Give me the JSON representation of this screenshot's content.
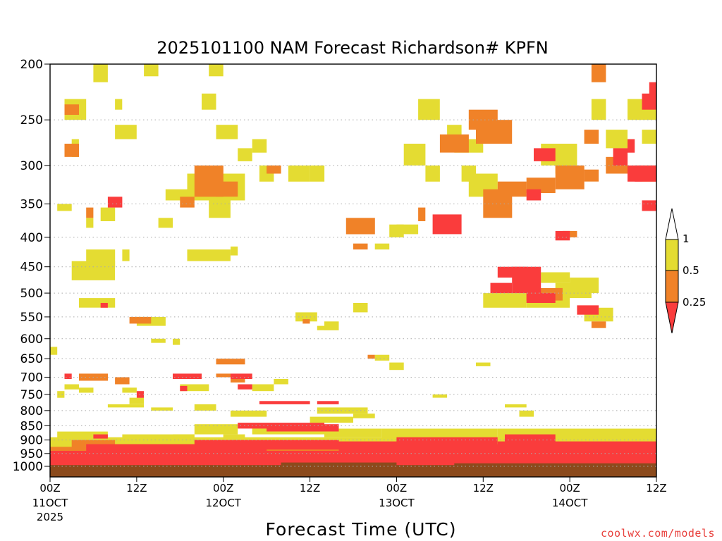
{
  "chart_data": {
    "type": "heatmap",
    "title": "2025101100 NAM Forecast Richardson# KPFN",
    "xlabel": "Forecast Time (UTC)",
    "ylabel": "",
    "credit": "coolwx.com/models",
    "x_range_hours": [
      0,
      84
    ],
    "y_range_hpa": [
      200,
      1000
    ],
    "y_scale": "log",
    "y_ticks": [
      200,
      250,
      300,
      350,
      400,
      450,
      500,
      550,
      600,
      650,
      700,
      750,
      800,
      850,
      900,
      950,
      1000
    ],
    "x_ticks": [
      {
        "hour": 0,
        "top": "00Z",
        "mid": "11OCT",
        "bot": "2025"
      },
      {
        "hour": 12,
        "top": "12Z",
        "mid": "",
        "bot": ""
      },
      {
        "hour": 24,
        "top": "00Z",
        "mid": "12OCT",
        "bot": ""
      },
      {
        "hour": 36,
        "top": "12Z",
        "mid": "",
        "bot": ""
      },
      {
        "hour": 48,
        "top": "00Z",
        "mid": "13OCT",
        "bot": ""
      },
      {
        "hour": 60,
        "top": "12Z",
        "mid": "",
        "bot": ""
      },
      {
        "hour": 72,
        "top": "00Z",
        "mid": "14OCT",
        "bot": ""
      },
      {
        "hour": 84,
        "top": "12Z",
        "mid": "",
        "bot": ""
      }
    ],
    "legend": {
      "position": "right",
      "levels": [
        "1",
        "0.5",
        "0.25"
      ],
      "colors": {
        "yellow": "#e4dc32",
        "orange": "#f08228",
        "red": "#fa3c3c",
        "ground": "#8b4a1c"
      }
    },
    "series": [
      {
        "name": "red",
        "color": "#fa3c3c",
        "cells": [
          [
            0,
            84,
            960,
            1000
          ],
          [
            0,
            84,
            940,
            965
          ],
          [
            5,
            30,
            915,
            945
          ],
          [
            20,
            40,
            900,
            935
          ],
          [
            40,
            60,
            905,
            945
          ],
          [
            45,
            82,
            915,
            950
          ],
          [
            62,
            84,
            905,
            950
          ],
          [
            6,
            8,
            880,
            895
          ],
          [
            26,
            38,
            840,
            860
          ],
          [
            30,
            40,
            845,
            870
          ],
          [
            48,
            62,
            890,
            925
          ],
          [
            63,
            70,
            880,
            915
          ],
          [
            7,
            8,
            520,
            530
          ],
          [
            2,
            3,
            690,
            705
          ],
          [
            12,
            13,
            740,
            760
          ],
          [
            17,
            21,
            690,
            705
          ],
          [
            18,
            19,
            725,
            740
          ],
          [
            25,
            28,
            690,
            705
          ],
          [
            26,
            28,
            720,
            735
          ],
          [
            29,
            36,
            770,
            780
          ],
          [
            37,
            40,
            770,
            780
          ],
          [
            53,
            57,
            365,
            395
          ],
          [
            61,
            64,
            480,
            500
          ],
          [
            62,
            66,
            450,
            470
          ],
          [
            64,
            68,
            450,
            500
          ],
          [
            66,
            70,
            500,
            520
          ],
          [
            70,
            72,
            390,
            405
          ],
          [
            73,
            76,
            525,
            545
          ],
          [
            78,
            80,
            280,
            300
          ],
          [
            80,
            84,
            300,
            320
          ],
          [
            82,
            84,
            225,
            240
          ],
          [
            83,
            86,
            215,
            230
          ],
          [
            82,
            86,
            345,
            360
          ],
          [
            88,
            89,
            340,
            350
          ],
          [
            8,
            10,
            340,
            355
          ],
          [
            80,
            81,
            270,
            285
          ],
          [
            89,
            92,
            230,
            245
          ],
          [
            67,
            70,
            280,
            295
          ],
          [
            66,
            68,
            330,
            345
          ],
          [
            86,
            88,
            220,
            235
          ],
          [
            81,
            82,
            300,
            320
          ]
        ]
      },
      {
        "name": "orange",
        "color": "#f08228",
        "cells": [
          [
            0,
            84,
            925,
            960
          ],
          [
            2,
            26,
            935,
            965
          ],
          [
            35,
            48,
            935,
            960
          ],
          [
            60,
            84,
            930,
            960
          ],
          [
            3,
            9,
            900,
            930
          ],
          [
            4,
            8,
            690,
            710
          ],
          [
            11,
            14,
            550,
            565
          ],
          [
            18,
            20,
            340,
            355
          ],
          [
            20,
            24,
            300,
            340
          ],
          [
            23,
            26,
            320,
            340
          ],
          [
            30,
            32,
            300,
            310
          ],
          [
            35,
            36,
            555,
            565
          ],
          [
            42,
            44,
            410,
            420
          ],
          [
            41,
            45,
            370,
            395
          ],
          [
            51,
            52,
            355,
            375
          ],
          [
            54,
            58,
            265,
            285
          ],
          [
            58,
            62,
            240,
            260
          ],
          [
            59,
            64,
            250,
            275
          ],
          [
            60,
            64,
            330,
            370
          ],
          [
            62,
            66,
            320,
            340
          ],
          [
            66,
            71,
            490,
            515
          ],
          [
            66,
            70,
            315,
            335
          ],
          [
            70,
            74,
            300,
            330
          ],
          [
            74,
            76,
            305,
            320
          ],
          [
            77,
            80,
            290,
            310
          ],
          [
            82,
            84,
            300,
            320
          ],
          [
            85,
            88,
            330,
            345
          ],
          [
            90,
            92,
            325,
            345
          ],
          [
            23,
            27,
            650,
            665
          ],
          [
            25,
            27,
            700,
            715
          ],
          [
            23,
            25,
            690,
            700
          ],
          [
            44,
            45,
            640,
            650
          ],
          [
            2,
            4,
            235,
            245
          ],
          [
            2,
            4,
            275,
            290
          ],
          [
            5,
            6,
            355,
            370
          ],
          [
            71,
            73,
            390,
            400
          ],
          [
            75,
            77,
            200,
            215
          ],
          [
            74,
            76,
            260,
            275
          ],
          [
            75,
            77,
            560,
            575
          ],
          [
            9,
            11,
            700,
            720
          ],
          [
            84,
            86,
            200,
            215
          ]
        ]
      },
      {
        "name": "yellow",
        "color": "#e4dc32",
        "cells": [
          [
            0,
            84,
            890,
            930
          ],
          [
            1,
            8,
            870,
            900
          ],
          [
            10,
            20,
            880,
            910
          ],
          [
            20,
            26,
            845,
            880
          ],
          [
            28,
            38,
            850,
            880
          ],
          [
            36,
            42,
            820,
            840
          ],
          [
            38,
            46,
            860,
            890
          ],
          [
            46,
            62,
            860,
            900
          ],
          [
            62,
            84,
            860,
            900
          ],
          [
            72,
            80,
            870,
            890
          ],
          [
            2,
            5,
            230,
            250
          ],
          [
            3,
            4,
            270,
            290
          ],
          [
            6,
            8,
            200,
            215
          ],
          [
            9,
            10,
            230,
            240
          ],
          [
            9,
            12,
            255,
            270
          ],
          [
            13,
            15,
            200,
            210
          ],
          [
            21,
            23,
            225,
            240
          ],
          [
            22,
            24,
            200,
            210
          ],
          [
            23,
            26,
            255,
            270
          ],
          [
            26,
            28,
            280,
            295
          ],
          [
            28,
            30,
            270,
            285
          ],
          [
            29,
            31,
            300,
            320
          ],
          [
            3,
            9,
            440,
            475
          ],
          [
            5,
            9,
            420,
            450
          ],
          [
            10,
            11,
            420,
            440
          ],
          [
            1,
            3,
            350,
            360
          ],
          [
            5,
            6,
            370,
            385
          ],
          [
            7,
            9,
            355,
            375
          ],
          [
            15,
            17,
            370,
            385
          ],
          [
            16,
            20,
            330,
            345
          ],
          [
            19,
            27,
            310,
            345
          ],
          [
            22,
            25,
            340,
            370
          ],
          [
            19,
            25,
            420,
            440
          ],
          [
            25,
            26,
            415,
            430
          ],
          [
            4,
            9,
            510,
            530
          ],
          [
            12,
            16,
            550,
            570
          ],
          [
            33,
            36,
            300,
            320
          ],
          [
            36,
            38,
            300,
            320
          ],
          [
            34,
            37,
            540,
            560
          ],
          [
            37,
            40,
            570,
            580
          ],
          [
            14,
            16,
            600,
            610
          ],
          [
            17,
            18,
            600,
            615
          ],
          [
            8,
            13,
            780,
            790
          ],
          [
            10,
            12,
            730,
            745
          ],
          [
            14,
            17,
            790,
            800
          ],
          [
            20,
            23,
            780,
            800
          ],
          [
            25,
            30,
            800,
            820
          ],
          [
            28,
            31,
            720,
            740
          ],
          [
            31,
            33,
            705,
            720
          ],
          [
            37,
            44,
            790,
            810
          ],
          [
            42,
            45,
            810,
            825
          ],
          [
            45,
            47,
            410,
            420
          ],
          [
            47,
            49,
            380,
            400
          ],
          [
            48,
            51,
            380,
            395
          ],
          [
            49,
            52,
            275,
            300
          ],
          [
            51,
            54,
            230,
            250
          ],
          [
            52,
            54,
            300,
            320
          ],
          [
            55,
            57,
            255,
            270
          ],
          [
            57,
            59,
            300,
            320
          ],
          [
            58,
            62,
            310,
            340
          ],
          [
            56,
            60,
            270,
            285
          ],
          [
            60,
            66,
            500,
            530
          ],
          [
            66,
            72,
            500,
            530
          ],
          [
            68,
            72,
            460,
            480
          ],
          [
            70,
            75,
            480,
            510
          ],
          [
            72,
            76,
            470,
            500
          ],
          [
            74,
            78,
            530,
            560
          ],
          [
            75,
            77,
            230,
            250
          ],
          [
            77,
            80,
            260,
            280
          ],
          [
            80,
            84,
            230,
            250
          ],
          [
            82,
            85,
            260,
            275
          ],
          [
            86,
            89,
            230,
            250
          ],
          [
            86,
            88,
            440,
            460
          ],
          [
            89,
            94,
            440,
            460
          ],
          [
            91,
            92,
            475,
            500
          ],
          [
            90,
            92,
            320,
            340
          ],
          [
            45,
            47,
            640,
            655
          ],
          [
            47,
            49,
            660,
            680
          ],
          [
            42,
            44,
            520,
            540
          ],
          [
            38,
            40,
            560,
            580
          ],
          [
            59,
            61,
            660,
            670
          ],
          [
            53,
            55,
            750,
            760
          ],
          [
            63,
            66,
            780,
            790
          ],
          [
            65,
            67,
            800,
            820
          ],
          [
            70,
            72,
            290,
            310
          ],
          [
            68,
            73,
            275,
            300
          ],
          [
            1,
            2,
            740,
            760
          ],
          [
            2,
            4,
            720,
            735
          ],
          [
            4,
            6,
            730,
            745
          ],
          [
            11,
            13,
            760,
            780
          ],
          [
            18,
            22,
            720,
            740
          ],
          [
            0,
            1,
            620,
            640
          ],
          [
            17,
            20,
            880,
            900
          ],
          [
            24,
            27,
            880,
            900
          ],
          [
            88,
            92,
            385,
            400
          ]
        ]
      },
      {
        "name": "ground",
        "color": "#8b4a1c",
        "cells": [
          [
            0,
            84,
            995,
            1000
          ],
          [
            32,
            48,
            985,
            1000
          ],
          [
            56,
            84,
            988,
            1000
          ]
        ]
      }
    ]
  }
}
